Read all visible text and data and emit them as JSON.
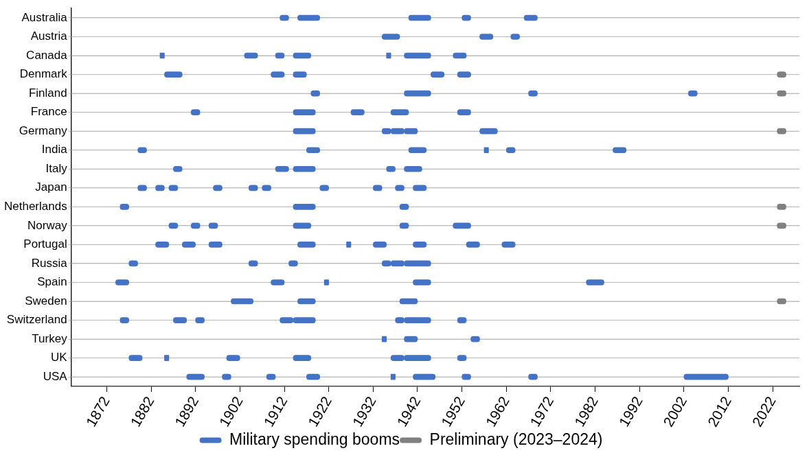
{
  "chart_data": {
    "type": "bar",
    "orientation": "horizontal",
    "categories": [
      "Australia",
      "Austria",
      "Canada",
      "Denmark",
      "Finland",
      "France",
      "Germany",
      "India",
      "Italy",
      "Japan",
      "Netherlands",
      "Norway",
      "Portugal",
      "Russia",
      "Spain",
      "Sweden",
      "Switzerland",
      "Turkey",
      "UK",
      "USA"
    ],
    "series": [
      {
        "name": "Military spending booms",
        "color": "#4472c4",
        "base": [
          1911,
          1934,
          1884,
          1885,
          1918,
          1891,
          1914,
          1879,
          1887,
          1879,
          1875,
          1886,
          1883,
          1877,
          1874,
          1900,
          1875,
          1934,
          1877,
          1890
        ],
        "values": [
          2,
          4,
          1,
          4,
          2,
          2,
          5,
          2,
          2,
          2,
          2,
          2,
          3,
          2,
          3,
          5,
          2,
          1,
          3,
          4
        ]
      },
      {
        "color": "#4472c4",
        "base": [
          1915,
          1956,
          1903,
          1909,
          1939,
          1914,
          1934,
          1917,
          1910,
          1883,
          1914,
          1891,
          1889,
          1904,
          1909,
          1915,
          1887,
          1939,
          1885,
          1898
        ],
        "values": [
          5,
          3,
          3,
          3,
          6,
          5,
          2,
          3,
          3,
          2,
          5,
          2,
          3,
          2,
          3,
          4,
          3,
          3,
          1,
          2
        ]
      },
      {
        "color": "#4472c4",
        "base": [
          1940,
          1963,
          1910,
          1914,
          1967,
          1927,
          1936,
          1940,
          1914,
          1886,
          1938,
          1895,
          1895,
          1913,
          1921,
          1938,
          1892,
          1954,
          1899,
          1908
        ],
        "values": [
          5,
          2,
          2,
          3,
          2,
          3,
          3,
          4,
          5,
          2,
          2,
          2,
          3,
          2,
          1,
          4,
          2,
          2,
          3,
          2
        ]
      },
      {
        "color": "#4472c4",
        "base": [
          1952,
          null,
          1914,
          1945,
          2003,
          1936,
          1939,
          1957,
          1935,
          1896,
          null,
          1914,
          1915,
          1934,
          1941,
          null,
          1911,
          null,
          1914,
          1917
        ],
        "values": [
          2,
          null,
          4,
          3,
          2,
          4,
          3,
          1,
          2,
          2,
          null,
          4,
          4,
          2,
          4,
          null,
          3,
          null,
          4,
          3
        ]
      },
      {
        "color": "#4472c4",
        "base": [
          1966,
          null,
          1935,
          1951,
          null,
          1951,
          1956,
          1962,
          1939,
          1904,
          null,
          1938,
          1926,
          1936,
          1980,
          null,
          1914,
          null,
          1936,
          1936
        ],
        "values": [
          3,
          null,
          1,
          3,
          null,
          3,
          4,
          2,
          4,
          2,
          null,
          2,
          1,
          3,
          4,
          null,
          5,
          null,
          3,
          1
        ]
      },
      {
        "color": "#4472c4",
        "base": [
          null,
          null,
          1939,
          null,
          null,
          null,
          null,
          1986,
          null,
          1907,
          null,
          1950,
          1932,
          1939,
          null,
          null,
          1937,
          null,
          1939,
          1941
        ],
        "values": [
          null,
          null,
          6,
          null,
          null,
          null,
          null,
          3,
          null,
          2,
          null,
          4,
          3,
          6,
          null,
          null,
          2,
          null,
          6,
          5
        ]
      },
      {
        "color": "#4472c4",
        "base": [
          null,
          null,
          1950,
          null,
          null,
          null,
          null,
          null,
          null,
          1920,
          null,
          null,
          1941,
          null,
          null,
          null,
          1939,
          null,
          1951,
          1952
        ],
        "values": [
          null,
          null,
          3,
          null,
          null,
          null,
          null,
          null,
          null,
          2,
          null,
          null,
          3,
          null,
          null,
          null,
          6,
          null,
          2,
          2
        ]
      },
      {
        "color": "#4472c4",
        "base": [
          null,
          null,
          null,
          null,
          null,
          null,
          null,
          null,
          null,
          1932,
          null,
          null,
          1953,
          null,
          null,
          null,
          1951,
          null,
          null,
          1967
        ],
        "values": [
          null,
          null,
          null,
          null,
          null,
          null,
          null,
          null,
          null,
          2,
          null,
          null,
          3,
          null,
          null,
          null,
          2,
          null,
          null,
          2
        ]
      },
      {
        "color": "#4472c4",
        "base": [
          null,
          null,
          null,
          null,
          null,
          null,
          null,
          null,
          null,
          1937,
          null,
          null,
          1961,
          null,
          null,
          null,
          null,
          null,
          null,
          2002
        ],
        "values": [
          null,
          null,
          null,
          null,
          null,
          null,
          null,
          null,
          null,
          2,
          null,
          null,
          3,
          null,
          null,
          null,
          null,
          null,
          null,
          10
        ]
      },
      {
        "color": "#4472c4",
        "base": [
          null,
          null,
          null,
          null,
          null,
          null,
          null,
          null,
          null,
          1941,
          null,
          null,
          null,
          null,
          null,
          null,
          null,
          null,
          null,
          null
        ],
        "values": [
          null,
          null,
          null,
          null,
          null,
          null,
          null,
          null,
          null,
          3,
          null,
          null,
          null,
          null,
          null,
          null,
          null,
          null,
          null,
          null
        ]
      },
      {
        "name": "Preliminary (2023–2024)",
        "color": "#808080",
        "base": [
          null,
          null,
          null,
          2023,
          2023,
          null,
          2023,
          null,
          null,
          null,
          2023,
          2023,
          null,
          null,
          null,
          2023,
          null,
          null,
          null,
          null
        ],
        "values": [
          null,
          null,
          null,
          2,
          2,
          null,
          2,
          null,
          null,
          null,
          2,
          2,
          null,
          null,
          null,
          2,
          null,
          null,
          null,
          null
        ]
      }
    ],
    "xlim": [
      1864,
      2028
    ],
    "xticks": [
      1872,
      1882,
      1892,
      1902,
      1912,
      1922,
      1932,
      1942,
      1952,
      1962,
      1972,
      1982,
      1992,
      2002,
      2012,
      2022
    ],
    "grid": "y",
    "legend": "bottom"
  }
}
